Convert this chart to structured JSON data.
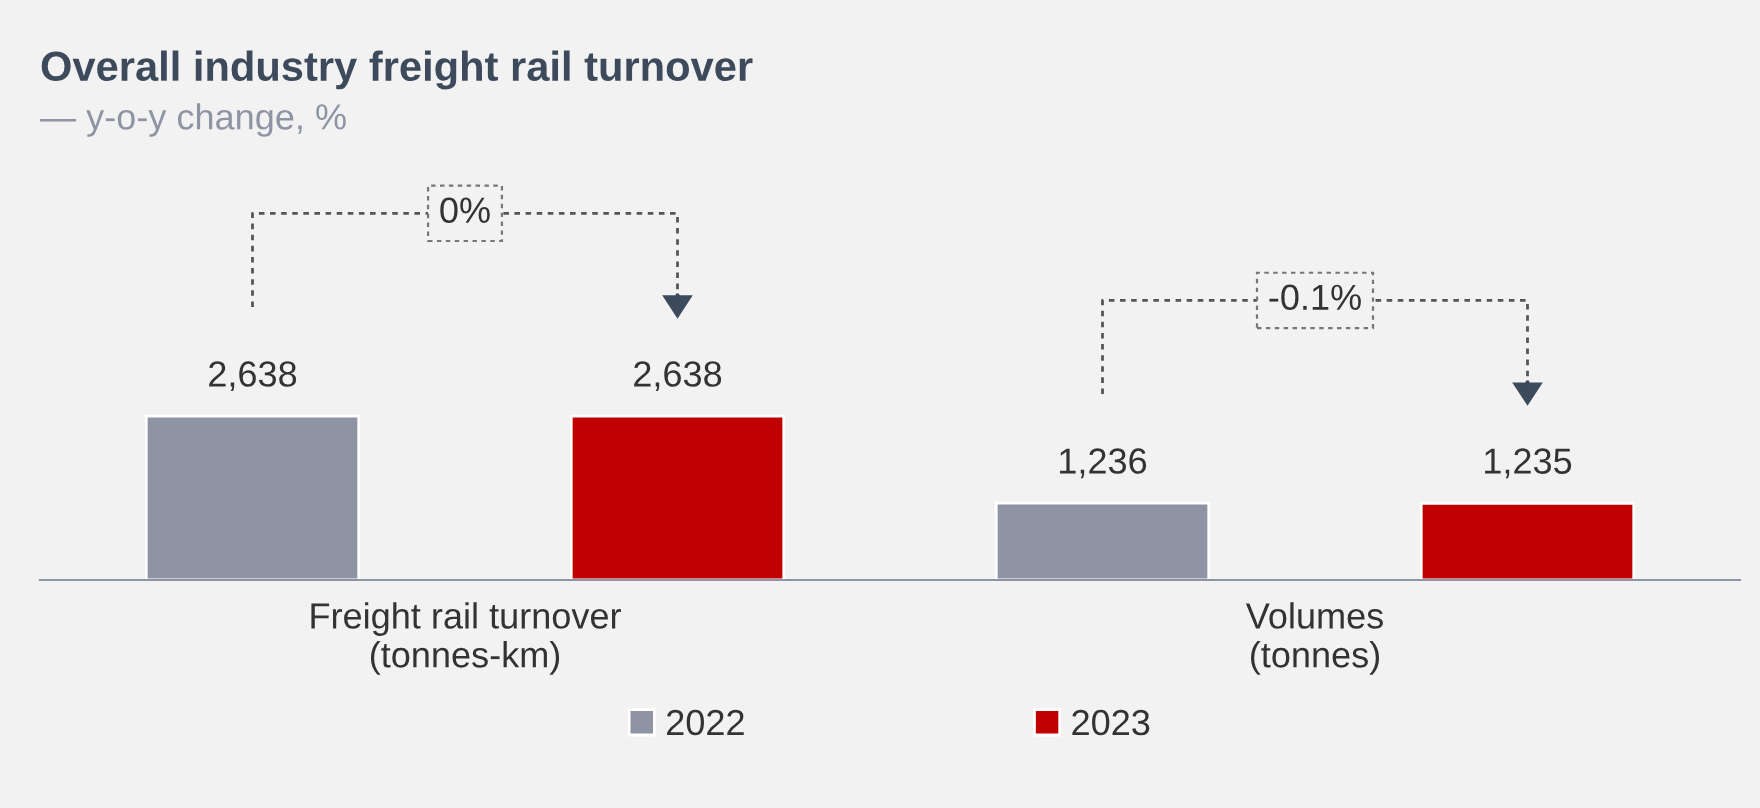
{
  "chart_data": {
    "type": "bar",
    "title": "Overall industry freight rail turnover",
    "subtitle": "— y-o-y change, %",
    "categories": [
      "Freight rail turnover\n(tonnes-km)",
      "Volumes\n(tonnes)"
    ],
    "series": [
      {
        "name": "2022",
        "color": "#8e94a3",
        "values": [
          2638,
          1236
        ],
        "value_labels": [
          "2,638",
          "1,236"
        ]
      },
      {
        "name": "2023",
        "color": "#c00000",
        "values": [
          2638,
          1235
        ],
        "value_labels": [
          "2,638",
          "1,235"
        ]
      }
    ],
    "annotations": [
      "0%",
      "-0.1%"
    ],
    "legend": "bottom"
  }
}
